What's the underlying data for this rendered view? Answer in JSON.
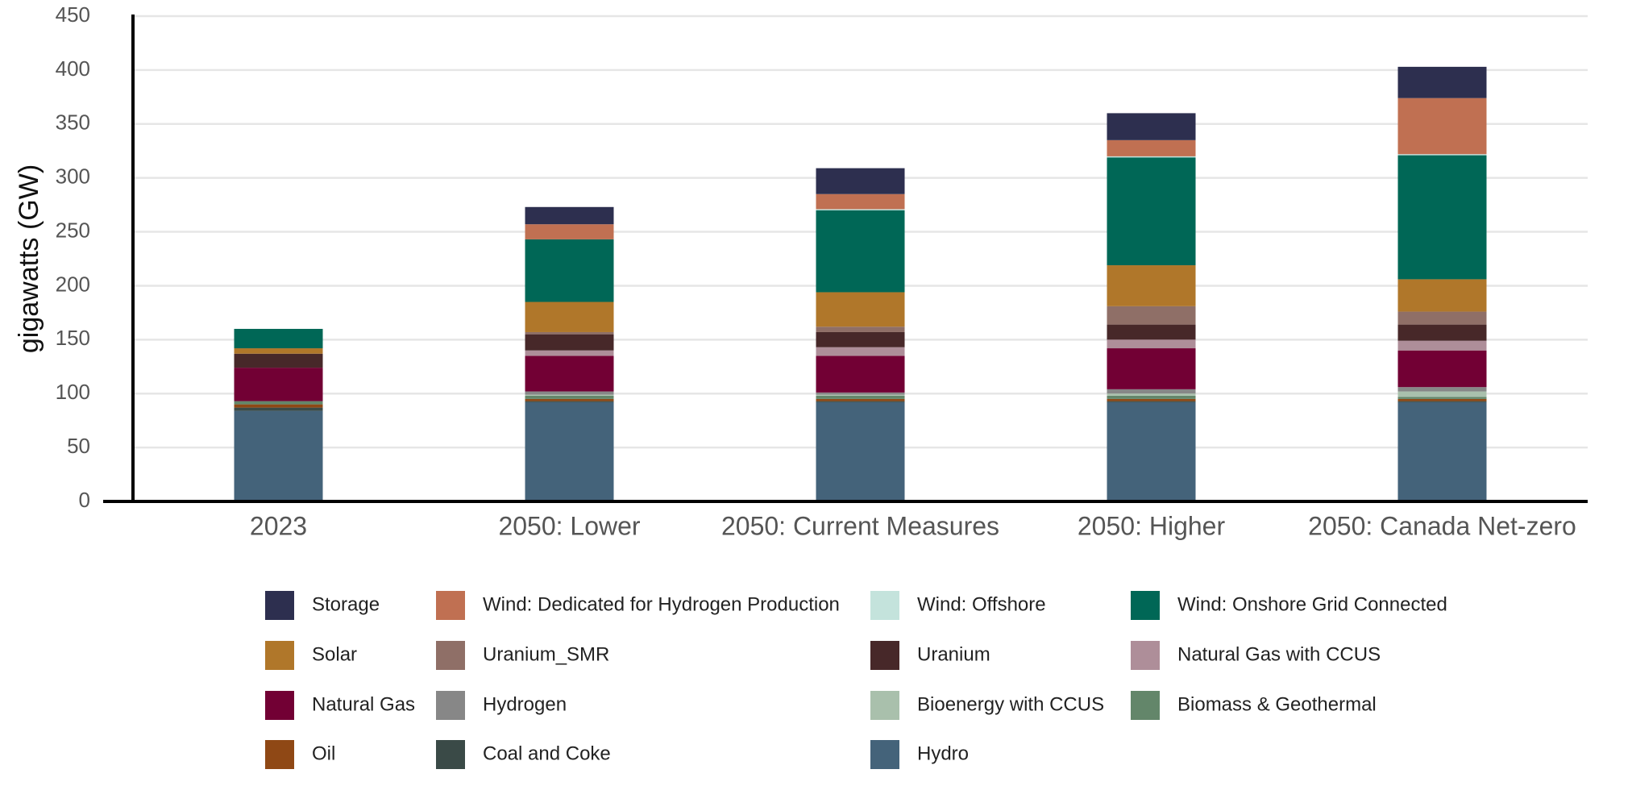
{
  "chart_data": {
    "type": "stacked_bar",
    "y_label": "gigawatts (GW)",
    "categories": [
      "2023",
      "2050: Lower",
      "2050: Current Measures",
      "2050: Higher",
      "2050: Canada Net-zero"
    ],
    "ylim": [
      0,
      450
    ],
    "yticks": [
      0,
      50,
      100,
      150,
      200,
      250,
      300,
      350,
      400,
      450
    ],
    "grid": true,
    "series": [
      {
        "name": "Hydro",
        "color": "#44637a",
        "values": [
          84,
          92,
          92,
          92,
          92
        ]
      },
      {
        "name": "Coal and Coke",
        "color": "#3a4a47",
        "values": [
          3,
          1,
          1,
          1,
          1
        ]
      },
      {
        "name": "Oil",
        "color": "#8f4815",
        "values": [
          3,
          2,
          2,
          2,
          2
        ]
      },
      {
        "name": "Biomass & Geothermal",
        "color": "#63866a",
        "values": [
          3,
          3,
          3,
          3,
          2
        ]
      },
      {
        "name": "Bioenergy with CCUS",
        "color": "#a9c0ac",
        "values": [
          0,
          1,
          1,
          2,
          5
        ]
      },
      {
        "name": "Hydrogen",
        "color": "#878787",
        "values": [
          0,
          3,
          2,
          4,
          4
        ]
      },
      {
        "name": "Natural Gas",
        "color": "#720034",
        "values": [
          31,
          33,
          34,
          38,
          34
        ]
      },
      {
        "name": "Natural Gas with CCUS",
        "color": "#ae8e99",
        "values": [
          0,
          5,
          8,
          8,
          9
        ]
      },
      {
        "name": "Uranium",
        "color": "#472829",
        "values": [
          13,
          15,
          14,
          14,
          15
        ]
      },
      {
        "name": "Uranium_SMR",
        "color": "#8f6f67",
        "values": [
          0,
          2,
          5,
          17,
          12
        ]
      },
      {
        "name": "Solar",
        "color": "#b0772a",
        "values": [
          5,
          28,
          32,
          38,
          30
        ]
      },
      {
        "name": "Wind: Onshore Grid Connected",
        "color": "#006756",
        "values": [
          18,
          58,
          76,
          100,
          115
        ]
      },
      {
        "name": "Wind: Offshore",
        "color": "#c4e3dc",
        "values": [
          0,
          0,
          1,
          1,
          1
        ]
      },
      {
        "name": "Wind: Dedicated for Hydrogen Production",
        "color": "#c07052",
        "values": [
          0,
          14,
          14,
          15,
          52
        ]
      },
      {
        "name": "Storage",
        "color": "#2d2f4f",
        "values": [
          0,
          16,
          24,
          25,
          29
        ]
      }
    ]
  }
}
